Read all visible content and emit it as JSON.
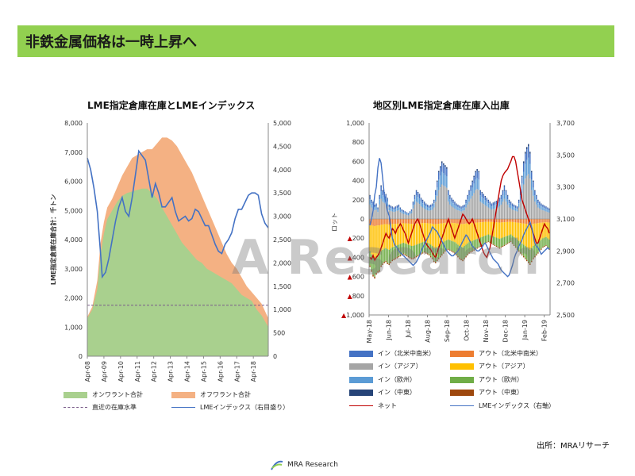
{
  "header": {
    "title": "非鉄金属価格は一時上昇へ"
  },
  "watermark": "A Research",
  "source": "出所：MRAリサーチ",
  "logo": {
    "text": "MRA Research"
  },
  "colors": {
    "title_bar": "#92d050",
    "green": "#a9d08e",
    "orange": "#f4b183",
    "blue": "#4472c4",
    "red": "#c00000"
  },
  "chart_data": [
    {
      "type": "area",
      "title": "LME指定倉庫在庫とLMEインデックス",
      "ylabel": "LME指定倉庫在庫合計：千トン",
      "ylim": [
        0,
        8000
      ],
      "y2lim": [
        0,
        5000
      ],
      "yticks": [
        "0",
        "1,000",
        "2,000",
        "3,000",
        "4,000",
        "5,000",
        "6,000",
        "7,000",
        "8,000"
      ],
      "y2ticks": [
        "0",
        "500",
        "1,000",
        "1,500",
        "2,000",
        "2,500",
        "3,000",
        "3,500",
        "4,000",
        "4,500",
        "5,000"
      ],
      "x_ticks": [
        "Apr-08",
        "Apr-09",
        "Apr-10",
        "Apr-11",
        "Apr-12",
        "Apr-13",
        "Apr-14",
        "Apr-15",
        "Apr-16",
        "Apr-17",
        "Apr-18"
      ],
      "x_range": [
        2008.0,
        2018.9
      ],
      "reference_line": {
        "name": "直近の在庫水準",
        "value": 1750
      },
      "series": [
        {
          "name": "オンワラント合計",
          "color": "#a9d08e",
          "points": [
            [
              2008.0,
              1300
            ],
            [
              2008.3,
              1600
            ],
            [
              2008.6,
              2300
            ],
            [
              2008.8,
              3500
            ],
            [
              2009.0,
              4200
            ],
            [
              2009.2,
              4700
            ],
            [
              2009.5,
              5000
            ],
            [
              2009.8,
              5300
            ],
            [
              2010.1,
              5500
            ],
            [
              2010.4,
              5600
            ],
            [
              2010.7,
              5650
            ],
            [
              2011.0,
              5700
            ],
            [
              2011.3,
              5750
            ],
            [
              2011.6,
              5750
            ],
            [
              2011.9,
              5600
            ],
            [
              2012.2,
              5400
            ],
            [
              2012.5,
              5100
            ],
            [
              2012.8,
              4800
            ],
            [
              2013.1,
              4500
            ],
            [
              2013.4,
              4200
            ],
            [
              2013.7,
              3900
            ],
            [
              2014.0,
              3700
            ],
            [
              2014.3,
              3500
            ],
            [
              2014.6,
              3300
            ],
            [
              2014.9,
              3200
            ],
            [
              2015.2,
              3000
            ],
            [
              2015.5,
              2900
            ],
            [
              2015.8,
              2800
            ],
            [
              2016.1,
              2700
            ],
            [
              2016.4,
              2600
            ],
            [
              2016.7,
              2500
            ],
            [
              2017.0,
              2300
            ],
            [
              2017.3,
              2100
            ],
            [
              2017.6,
              2000
            ],
            [
              2017.9,
              1900
            ],
            [
              2018.2,
              1600
            ],
            [
              2018.5,
              1400
            ],
            [
              2018.9,
              1000
            ]
          ]
        },
        {
          "name": "オフワラント合計",
          "color": "#f4b183",
          "points": [
            [
              2008.0,
              1350
            ],
            [
              2008.3,
              1700
            ],
            [
              2008.6,
              2600
            ],
            [
              2008.8,
              3900
            ],
            [
              2009.0,
              4600
            ],
            [
              2009.2,
              5100
            ],
            [
              2009.5,
              5400
            ],
            [
              2009.8,
              5800
            ],
            [
              2010.1,
              6200
            ],
            [
              2010.4,
              6500
            ],
            [
              2010.7,
              6800
            ],
            [
              2011.0,
              6900
            ],
            [
              2011.3,
              7000
            ],
            [
              2011.6,
              7100
            ],
            [
              2011.9,
              7100
            ],
            [
              2012.2,
              7300
            ],
            [
              2012.5,
              7500
            ],
            [
              2012.8,
              7500
            ],
            [
              2013.1,
              7400
            ],
            [
              2013.4,
              7200
            ],
            [
              2013.7,
              6900
            ],
            [
              2014.0,
              6600
            ],
            [
              2014.3,
              6300
            ],
            [
              2014.6,
              5900
            ],
            [
              2014.9,
              5500
            ],
            [
              2015.2,
              5100
            ],
            [
              2015.5,
              4700
            ],
            [
              2015.8,
              4300
            ],
            [
              2016.1,
              3900
            ],
            [
              2016.4,
              3500
            ],
            [
              2016.7,
              3200
            ],
            [
              2017.0,
              3000
            ],
            [
              2017.3,
              2700
            ],
            [
              2017.6,
              2400
            ],
            [
              2017.9,
              2200
            ],
            [
              2018.2,
              2000
            ],
            [
              2018.5,
              1800
            ],
            [
              2018.9,
              1300
            ]
          ]
        },
        {
          "name": "LMEインデックス（右目盛り）",
          "color": "#4472c4",
          "axis": "right",
          "points": [
            [
              2008.0,
              4250
            ],
            [
              2008.2,
              4000
            ],
            [
              2008.4,
              3600
            ],
            [
              2008.6,
              3100
            ],
            [
              2008.8,
              2200
            ],
            [
              2008.9,
              1700
            ],
            [
              2009.1,
              1800
            ],
            [
              2009.3,
              2100
            ],
            [
              2009.5,
              2500
            ],
            [
              2009.7,
              2900
            ],
            [
              2009.9,
              3200
            ],
            [
              2010.1,
              3400
            ],
            [
              2010.3,
              3100
            ],
            [
              2010.5,
              3000
            ],
            [
              2010.7,
              3400
            ],
            [
              2010.9,
              3900
            ],
            [
              2011.1,
              4400
            ],
            [
              2011.3,
              4300
            ],
            [
              2011.5,
              4200
            ],
            [
              2011.7,
              3800
            ],
            [
              2011.9,
              3400
            ],
            [
              2012.1,
              3700
            ],
            [
              2012.3,
              3500
            ],
            [
              2012.5,
              3200
            ],
            [
              2012.7,
              3200
            ],
            [
              2012.9,
              3300
            ],
            [
              2013.1,
              3400
            ],
            [
              2013.3,
              3100
            ],
            [
              2013.5,
              2900
            ],
            [
              2013.7,
              2950
            ],
            [
              2013.9,
              3000
            ],
            [
              2014.1,
              2900
            ],
            [
              2014.3,
              2950
            ],
            [
              2014.5,
              3150
            ],
            [
              2014.7,
              3100
            ],
            [
              2014.9,
              2950
            ],
            [
              2015.1,
              2800
            ],
            [
              2015.3,
              2800
            ],
            [
              2015.5,
              2600
            ],
            [
              2015.7,
              2400
            ],
            [
              2015.9,
              2250
            ],
            [
              2016.1,
              2200
            ],
            [
              2016.3,
              2400
            ],
            [
              2016.5,
              2500
            ],
            [
              2016.7,
              2650
            ],
            [
              2016.9,
              2950
            ],
            [
              2017.1,
              3150
            ],
            [
              2017.3,
              3150
            ],
            [
              2017.5,
              3300
            ],
            [
              2017.7,
              3450
            ],
            [
              2017.9,
              3500
            ],
            [
              2018.1,
              3500
            ],
            [
              2018.3,
              3450
            ],
            [
              2018.5,
              3050
            ],
            [
              2018.7,
              2850
            ],
            [
              2018.9,
              2750
            ]
          ]
        }
      ],
      "legend": [
        "オンワラント合計",
        "オフワラント合計",
        "直近の在庫水準",
        "LMEインデックス（右目盛り）"
      ]
    },
    {
      "type": "bar",
      "title": "地区別LME指定倉庫在庫入出庫",
      "ylabel": "ロット",
      "ylim": [
        -1000,
        1000
      ],
      "y2lim": [
        2500,
        3700
      ],
      "yticks": [
        "▲1,000",
        "▲800",
        "▲600",
        "▲400",
        "▲200",
        "0",
        "200",
        "400",
        "600",
        "800",
        "1,000"
      ],
      "y2ticks": [
        "2,500",
        "2,700",
        "2,900",
        "3,100",
        "3,300",
        "3,500",
        "3,700"
      ],
      "x_ticks": [
        "May-18",
        "Jun-18",
        "Jul-18",
        "Aug-18",
        "Sep-18",
        "Oct-18",
        "Nov-18",
        "Dec-18",
        "Jan-19",
        "Feb-19"
      ],
      "x_range": [
        0,
        9.3
      ],
      "in_totals": [
        250,
        200,
        180,
        150,
        160,
        120,
        250,
        350,
        300,
        280,
        260,
        220,
        150,
        140,
        130,
        120,
        130,
        140,
        150,
        120,
        100,
        90,
        80,
        70,
        60,
        80,
        100,
        180,
        250,
        300,
        280,
        260,
        220,
        200,
        180,
        160,
        150,
        140,
        150,
        160,
        200,
        300,
        400,
        500,
        550,
        600,
        580,
        560,
        540,
        300,
        250,
        220,
        200,
        180,
        160,
        150,
        140,
        130,
        140,
        150,
        200,
        250,
        300,
        350,
        400,
        450,
        500,
        520,
        500,
        300,
        280,
        260,
        240,
        220,
        200,
        180,
        160,
        170,
        180,
        190,
        200,
        220,
        250,
        300,
        350,
        300,
        250,
        200,
        180,
        160,
        150,
        140,
        130,
        200,
        300,
        450,
        600,
        700,
        750,
        780,
        700,
        500,
        400,
        300,
        250,
        200,
        180,
        160,
        150,
        140,
        130,
        120,
        110
      ],
      "out_totals": [
        -500,
        -550,
        -600,
        -620,
        -580,
        -560,
        -550,
        -500,
        -480,
        -460,
        -450,
        -470,
        -480,
        -460,
        -440,
        -430,
        -420,
        -410,
        -400,
        -390,
        -380,
        -370,
        -380,
        -390,
        -400,
        -410,
        -420,
        -420,
        -410,
        -400,
        -390,
        -380,
        -370,
        -360,
        -350,
        -360,
        -370,
        -380,
        -400,
        -420,
        -450,
        -460,
        -440,
        -420,
        -400,
        -380,
        -360,
        -340,
        -330,
        -320,
        -330,
        -340,
        -350,
        -360,
        -380,
        -400,
        -420,
        -430,
        -440,
        -420,
        -400,
        -380,
        -360,
        -350,
        -340,
        -330,
        -320,
        -310,
        -300,
        -290,
        -280,
        -270,
        -260,
        -250,
        -240,
        -250,
        -260,
        -270,
        -280,
        -290,
        -300,
        -310,
        -300,
        -290,
        -280,
        -270,
        -260,
        -250,
        -240,
        -260,
        -280,
        -300,
        -320,
        -340,
        -360,
        -380,
        -400,
        -420,
        -440,
        -460,
        -480,
        -450,
        -420,
        -400,
        -380,
        -360,
        -340,
        -320,
        -300,
        -290,
        -280,
        -300,
        -320
      ],
      "series_colors": {
        "in_na": "#4472c4",
        "in_asia": "#a5a5a5",
        "in_eu": "#5b9bd5",
        "in_me": "#264478",
        "out_na": "#ed7d31",
        "out_asia": "#ffc000",
        "out_eu": "#70ad47",
        "out_me": "#9e480e",
        "net": "#c00000",
        "index": "#4472c4"
      },
      "net": [
        -400,
        -420,
        -380,
        -430,
        -400,
        -380,
        -350,
        -300,
        -250,
        -200,
        -150,
        -180,
        -200,
        -150,
        -100,
        -120,
        -150,
        -100,
        -80,
        -50,
        -80,
        -120,
        -150,
        -200,
        -250,
        -200,
        -150,
        -100,
        -50,
        -20,
        0,
        -50,
        -100,
        -150,
        -200,
        -250,
        -280,
        -300,
        -320,
        -350,
        -380,
        -400,
        -350,
        -300,
        -250,
        -200,
        -150,
        -100,
        -50,
        0,
        -50,
        -100,
        -150,
        -200,
        -150,
        -100,
        -50,
        0,
        50,
        30,
        0,
        -30,
        -50,
        -30,
        0,
        -50,
        -100,
        -150,
        -200,
        -250,
        -300,
        -350,
        -380,
        -400,
        -350,
        -300,
        -200,
        -100,
        0,
        100,
        200,
        300,
        400,
        450,
        480,
        500,
        520,
        560,
        600,
        650,
        650,
        600,
        500,
        400,
        300,
        200,
        150,
        100,
        50,
        0,
        -50,
        -100,
        -150,
        -200,
        -250,
        -250,
        -200,
        -150,
        -100,
        -50,
        -80,
        -100,
        -150
      ],
      "lme_index": [
        3060,
        3100,
        3150,
        3250,
        3300,
        3420,
        3480,
        3450,
        3350,
        3250,
        3200,
        3150,
        3120,
        3050,
        2980,
        2950,
        2930,
        2920,
        2900,
        2890,
        2880,
        2870,
        2860,
        2850,
        2840,
        2830,
        2820,
        2810,
        2820,
        2830,
        2850,
        2870,
        2900,
        2920,
        2940,
        2960,
        2980,
        3000,
        3020,
        3050,
        3040,
        3030,
        3020,
        3000,
        2980,
        2960,
        2940,
        2920,
        2900,
        2890,
        2880,
        2870,
        2870,
        2880,
        2890,
        2900,
        2920,
        2940,
        2960,
        2980,
        3000,
        2990,
        2970,
        2950,
        2930,
        2920,
        2910,
        2900,
        2900,
        2910,
        2920,
        2940,
        2950,
        2930,
        2910,
        2890,
        2870,
        2850,
        2840,
        2830,
        2820,
        2800,
        2780,
        2770,
        2760,
        2750,
        2740,
        2750,
        2780,
        2810,
        2850,
        2880,
        2900,
        2930,
        2950,
        2970,
        3000,
        3020,
        3040,
        3060,
        3080,
        3050,
        3000,
        2950,
        2930,
        2920,
        2900,
        2880,
        2890,
        2900,
        2910,
        2920,
        2910
      ],
      "legend": [
        "イン（北米中南米）",
        "アウト（北米中南米）",
        "イン（アジア）",
        "アウト（アジア）",
        "イン（欧州）",
        "アウト（欧州）",
        "イン（中東）",
        "アウト（中東）",
        "ネット",
        "LMEインデックス（右軸）"
      ]
    }
  ]
}
